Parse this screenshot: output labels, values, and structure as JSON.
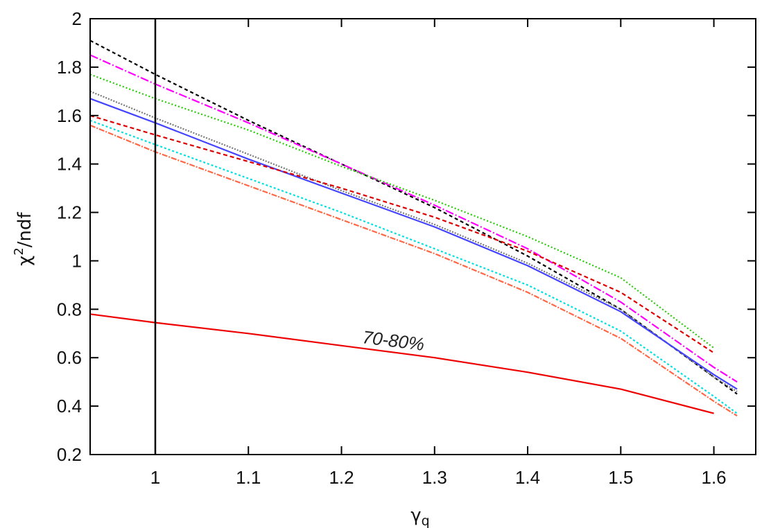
{
  "chart_data": {
    "type": "line",
    "xlabel_main": "γ",
    "xlabel_sub": "q",
    "ylabel_main": "χ",
    "ylabel_sup": "2",
    "ylabel_rest": "/ndf",
    "xlim": [
      0.93,
      1.645
    ],
    "ylim": [
      0.2,
      2.0
    ],
    "x_ticks": [
      1,
      1.1,
      1.2,
      1.3,
      1.4,
      1.5,
      1.6
    ],
    "x_tick_labels": [
      "1",
      "1.1",
      "1.2",
      "1.3",
      "1.4",
      "1.5",
      "1.6"
    ],
    "y_ticks": [
      0.2,
      0.4,
      0.6,
      0.8,
      1.0,
      1.2,
      1.4,
      1.6,
      1.8,
      2.0
    ],
    "y_tick_labels": [
      "0.2",
      "0.4",
      "0.6",
      "0.8",
      "1",
      "1.2",
      "1.4",
      "1.6",
      "1.8",
      "2"
    ],
    "grid": false,
    "vertical_line_x": 1.0,
    "annotation": {
      "text": "70-80%",
      "x": 1.255,
      "y": 0.645
    },
    "series": [
      {
        "color": "#000000",
        "dash": "5,4",
        "x": [
          0.93,
          1.0,
          1.1,
          1.2,
          1.3,
          1.4,
          1.5,
          1.6,
          1.625
        ],
        "y": [
          1.91,
          1.77,
          1.58,
          1.4,
          1.22,
          1.02,
          0.8,
          0.52,
          0.45
        ]
      },
      {
        "color": "#ff00ff",
        "dash": "12,3,2,3",
        "x": [
          0.93,
          1.0,
          1.1,
          1.2,
          1.3,
          1.4,
          1.5,
          1.6,
          1.625
        ],
        "y": [
          1.85,
          1.73,
          1.57,
          1.4,
          1.23,
          1.05,
          0.83,
          0.56,
          0.5
        ]
      },
      {
        "color": "#22cc00",
        "dash": "2,3",
        "x": [
          0.93,
          1.0,
          1.1,
          1.2,
          1.3,
          1.4,
          1.5,
          1.6
        ],
        "y": [
          1.77,
          1.67,
          1.54,
          1.39,
          1.25,
          1.1,
          0.93,
          0.64
        ]
      },
      {
        "color": "#777777",
        "dash": "2,2",
        "x": [
          0.93,
          1.0,
          1.1,
          1.2,
          1.3,
          1.4,
          1.5,
          1.6,
          1.625
        ],
        "y": [
          1.7,
          1.59,
          1.44,
          1.29,
          1.15,
          0.99,
          0.8,
          0.52,
          0.46
        ]
      },
      {
        "color": "#4444ff",
        "dash": "",
        "x": [
          0.93,
          1.0,
          1.1,
          1.2,
          1.3,
          1.4,
          1.5,
          1.6,
          1.625
        ],
        "y": [
          1.67,
          1.57,
          1.42,
          1.28,
          1.14,
          0.98,
          0.79,
          0.53,
          0.47
        ]
      },
      {
        "color": "#dd0000",
        "dash": "6,4",
        "x": [
          0.93,
          1.0,
          1.1,
          1.2,
          1.3,
          1.4,
          1.5,
          1.6
        ],
        "y": [
          1.6,
          1.52,
          1.41,
          1.3,
          1.18,
          1.04,
          0.87,
          0.62
        ]
      },
      {
        "color": "#00e0e0",
        "dash": "3,3",
        "x": [
          0.93,
          1.0,
          1.1,
          1.2,
          1.3,
          1.4,
          1.5,
          1.6,
          1.625
        ],
        "y": [
          1.58,
          1.48,
          1.34,
          1.2,
          1.05,
          0.9,
          0.71,
          0.44,
          0.37
        ]
      },
      {
        "color": "#ff6644",
        "dash": "8,2,2,2",
        "x": [
          0.93,
          1.0,
          1.1,
          1.2,
          1.3,
          1.4,
          1.5,
          1.6,
          1.625
        ],
        "y": [
          1.56,
          1.45,
          1.31,
          1.17,
          1.03,
          0.87,
          0.68,
          0.42,
          0.36
        ]
      },
      {
        "color": "#ee0000",
        "dash": "",
        "x": [
          0.93,
          1.0,
          1.1,
          1.2,
          1.3,
          1.4,
          1.5,
          1.6
        ],
        "y": [
          0.78,
          0.745,
          0.7,
          0.65,
          0.6,
          0.54,
          0.47,
          0.37
        ]
      }
    ]
  }
}
